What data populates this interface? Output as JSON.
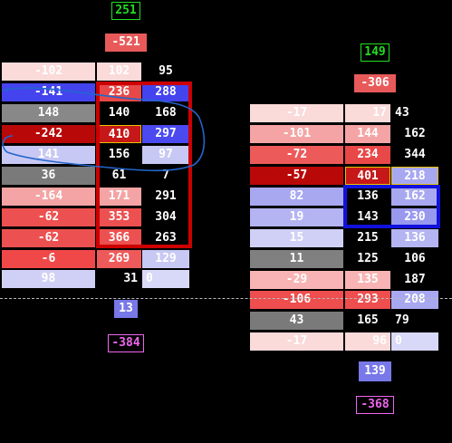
{
  "left_ladder": {
    "top_badge": "251",
    "top_delta": "-521",
    "rows": [
      {
        "delta": "-102",
        "bid": "102",
        "ask": "95"
      },
      {
        "delta": "-141",
        "bid": "236",
        "ask": "288"
      },
      {
        "delta": "148",
        "bid": "140",
        "ask": "168"
      },
      {
        "delta": "-242",
        "bid": "410",
        "ask": "297"
      },
      {
        "delta": "141",
        "bid": "156",
        "ask": "97"
      },
      {
        "delta": "36",
        "bid": "61",
        "ask": "7"
      },
      {
        "delta": "-164",
        "bid": "171",
        "ask": "291"
      },
      {
        "delta": "-62",
        "bid": "353",
        "ask": "304"
      },
      {
        "delta": "-62",
        "bid": "366",
        "ask": "263"
      },
      {
        "delta": "-6",
        "bid": "269",
        "ask": "129"
      },
      {
        "delta": "98",
        "bid": "31",
        "ask": "0"
      }
    ],
    "bottom_total": "13",
    "bottom_delta": "-384"
  },
  "right_ladder": {
    "top_badge": "149",
    "top_delta": "-306",
    "rows": [
      {
        "delta": "-17",
        "bid": "17",
        "ask": "43"
      },
      {
        "delta": "-101",
        "bid": "144",
        "ask": "162"
      },
      {
        "delta": "-72",
        "bid": "234",
        "ask": "344"
      },
      {
        "delta": "-57",
        "bid": "401",
        "ask": "218"
      },
      {
        "delta": "82",
        "bid": "136",
        "ask": "162"
      },
      {
        "delta": "19",
        "bid": "143",
        "ask": "230"
      },
      {
        "delta": "15",
        "bid": "215",
        "ask": "136"
      },
      {
        "delta": "11",
        "bid": "125",
        "ask": "106"
      },
      {
        "delta": "-29",
        "bid": "135",
        "ask": "187"
      },
      {
        "delta": "-106",
        "bid": "293",
        "ask": "208"
      },
      {
        "delta": "43",
        "bid": "165",
        "ask": "79"
      },
      {
        "delta": "-17",
        "bid": "96",
        "ask": "0"
      }
    ],
    "bottom_total": "139",
    "bottom_delta": "-368"
  },
  "colors": {
    "background": "#000000",
    "positive_badge": "#22dd22",
    "negative_badge": "#ee66ee",
    "highlight_frame": "#cc0000",
    "selection_frame": "#1111dd",
    "poc_outline": "#e8c200",
    "scribble": "#2266cc"
  }
}
